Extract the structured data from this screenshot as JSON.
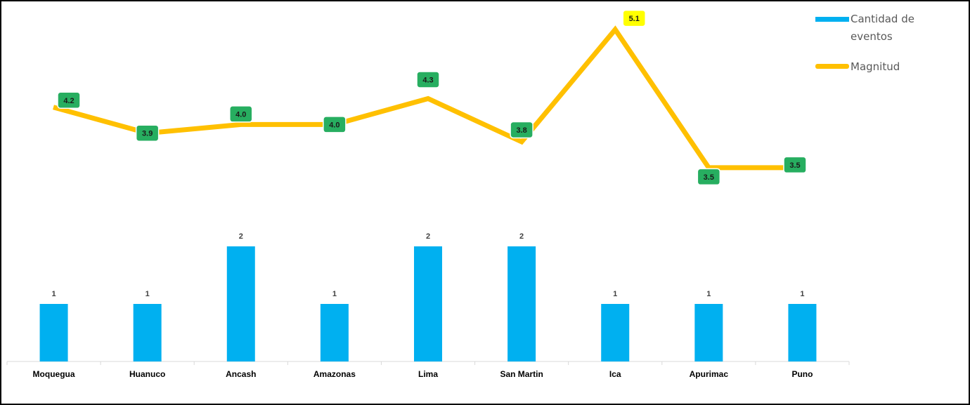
{
  "chart_data": {
    "type": "bar",
    "categories": [
      "Moquegua",
      "Huanuco",
      "Ancash",
      "Amazonas",
      "Lima",
      "San Martin",
      "Ica",
      "Apurimac",
      "Puno"
    ],
    "series": [
      {
        "name": "Cantidad de eventos",
        "type": "bar",
        "values": [
          1,
          1,
          2,
          1,
          2,
          2,
          1,
          1,
          1
        ],
        "color": "#00b0f0"
      },
      {
        "name": "Magnitud",
        "type": "line",
        "values": [
          4.2,
          3.9,
          4.0,
          4.0,
          4.3,
          3.8,
          5.1,
          3.5,
          3.5
        ],
        "labels": [
          "4.2",
          "3.9",
          "4.0",
          "4.0",
          "4.3",
          "3.8",
          "5.1",
          "3.5",
          "3.5"
        ],
        "color": "#ffc000",
        "label_bg": "#27ae60",
        "highlight_bg": "#ffff00",
        "highlight_index": 6
      }
    ],
    "legend": {
      "placement": "top-right",
      "entries": [
        "Cantidad de eventos",
        "Magnitud"
      ],
      "first_lines": [
        "Cantidad de",
        "eventos"
      ]
    },
    "grid": false,
    "title": "",
    "xlabel": "",
    "ylabel": ""
  }
}
